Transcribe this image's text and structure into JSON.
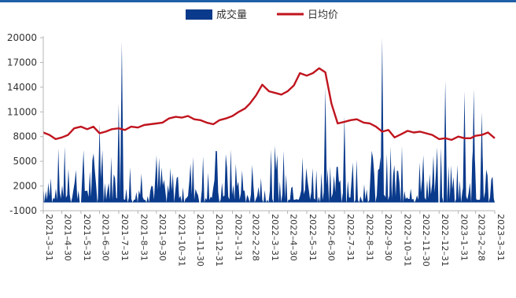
{
  "colors": {
    "volume": "#0a3a8c",
    "price": "#c0141e",
    "axis": "#b4b4b4",
    "text": "#333333",
    "rule": "#1f5fa8"
  },
  "chart_data": {
    "type": "area+line",
    "legend": [
      "成交量",
      "日均价"
    ],
    "legend_position": "top-center",
    "grid": false,
    "ylim": [
      -1000,
      20000
    ],
    "yticks": [
      -1000,
      2000,
      5000,
      8000,
      11000,
      14000,
      17000,
      20000
    ],
    "xlim": [
      "2021-03-31",
      "2023-03-31"
    ],
    "xticks": [
      "2021-3-31",
      "2021-4-30",
      "2021-5-31",
      "2021-6-30",
      "2021-7-31",
      "2021-8-31",
      "2021-9-30",
      "2021-10-31",
      "2021-11-30",
      "2021-12-31",
      "2022-1-31",
      "2022-2-28",
      "2022-3-31",
      "2022-4-30",
      "2022-5-31",
      "2022-6-30",
      "2022-7-31",
      "2022-8-31",
      "2022-9-30",
      "2022-10-31",
      "2022-11-30",
      "2022-12-31",
      "2023-1-31",
      "2023-2-28",
      "2023-3-31"
    ],
    "series": [
      {
        "name": "日均价",
        "kind": "line",
        "x": [
          "2021-03-31",
          "2021-04-10",
          "2021-04-20",
          "2021-04-30",
          "2021-05-10",
          "2021-05-20",
          "2021-05-31",
          "2021-06-10",
          "2021-06-20",
          "2021-06-30",
          "2021-07-10",
          "2021-07-20",
          "2021-07-31",
          "2021-08-10",
          "2021-08-20",
          "2021-08-31",
          "2021-09-10",
          "2021-09-20",
          "2021-09-30",
          "2021-10-10",
          "2021-10-20",
          "2021-10-31",
          "2021-11-10",
          "2021-11-20",
          "2021-11-30",
          "2021-12-10",
          "2021-12-20",
          "2021-12-31",
          "2022-01-10",
          "2022-01-20",
          "2022-01-31",
          "2022-02-10",
          "2022-02-20",
          "2022-02-28",
          "2022-03-10",
          "2022-03-20",
          "2022-03-31",
          "2022-04-10",
          "2022-04-20",
          "2022-04-30",
          "2022-05-10",
          "2022-05-20",
          "2022-05-31",
          "2022-06-10",
          "2022-06-20",
          "2022-06-30",
          "2022-07-10",
          "2022-07-20",
          "2022-07-31",
          "2022-08-10",
          "2022-08-20",
          "2022-08-31",
          "2022-09-10",
          "2022-09-20",
          "2022-09-30",
          "2022-10-10",
          "2022-10-20",
          "2022-10-31",
          "2022-11-10",
          "2022-11-20",
          "2022-11-30",
          "2022-12-10",
          "2022-12-20",
          "2022-12-31",
          "2023-01-10",
          "2023-01-20",
          "2023-01-31",
          "2023-02-10",
          "2023-02-20",
          "2023-02-28",
          "2023-03-10",
          "2023-03-20",
          "2023-03-31"
        ],
        "values": [
          8500,
          8200,
          7700,
          7900,
          8200,
          9000,
          9200,
          8900,
          9200,
          8400,
          8600,
          8900,
          9000,
          8800,
          9200,
          9100,
          9400,
          9500,
          9600,
          9700,
          10200,
          10400,
          10300,
          10500,
          10100,
          10000,
          9700,
          9500,
          10000,
          10200,
          10500,
          11000,
          11400,
          12000,
          13000,
          14300,
          13500,
          13300,
          13100,
          13500,
          14200,
          15700,
          15400,
          15700,
          16300,
          15800,
          12000,
          9600,
          9800,
          10000,
          10100,
          9700,
          9600,
          9200,
          8600,
          8800,
          7900,
          8300,
          8700,
          8500,
          8600,
          8400,
          8200,
          7700,
          7800,
          7600,
          8000,
          7800,
          7800,
          8100,
          8200,
          8500,
          7800
        ]
      },
      {
        "name": "成交量",
        "kind": "area",
        "x_range": [
          "2021-03-31",
          "2023-03-31"
        ],
        "typical_range": [
          300,
          7000
        ],
        "peaks": [
          {
            "x": "2021-06-30",
            "value": 9500
          },
          {
            "x": "2021-07-31",
            "value": 12000
          },
          {
            "x": "2021-08-05",
            "value": 19500
          },
          {
            "x": "2022-09-30",
            "value": 20000
          },
          {
            "x": "2022-06-30",
            "value": 14000
          },
          {
            "x": "2022-07-31",
            "value": 10500
          },
          {
            "x": "2023-01-10",
            "value": 14800
          },
          {
            "x": "2023-02-10",
            "value": 13500
          },
          {
            "x": "2023-02-25",
            "value": 13800
          },
          {
            "x": "2023-03-10",
            "value": 11000
          }
        ]
      }
    ]
  }
}
